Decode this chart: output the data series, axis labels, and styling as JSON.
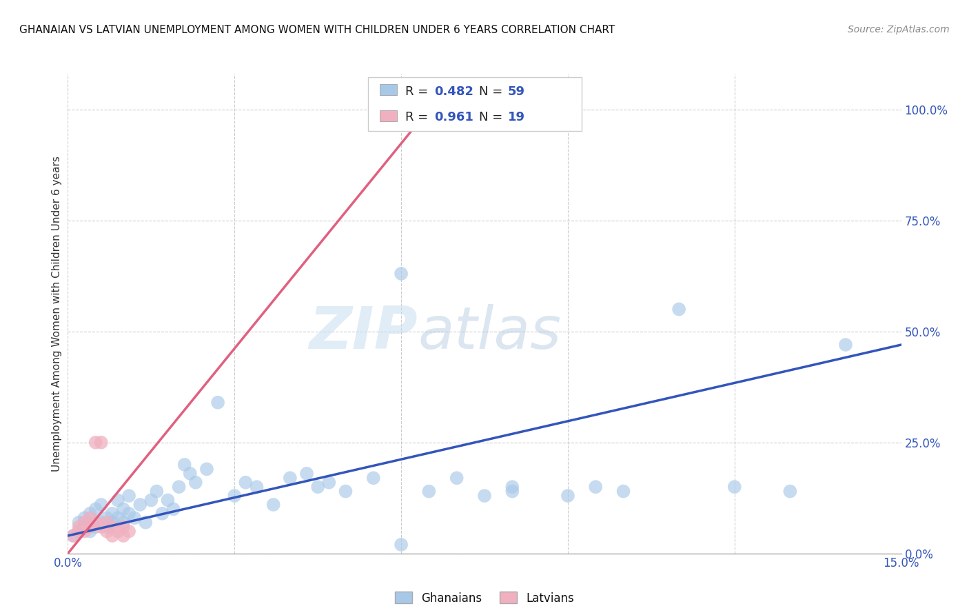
{
  "title": "GHANAIAN VS LATVIAN UNEMPLOYMENT AMONG WOMEN WITH CHILDREN UNDER 6 YEARS CORRELATION CHART",
  "source": "Source: ZipAtlas.com",
  "ylabel": "Unemployment Among Women with Children Under 6 years",
  "xlim": [
    0.0,
    0.15
  ],
  "ylim": [
    0.0,
    1.08
  ],
  "xticks": [
    0.0,
    0.03,
    0.06,
    0.09,
    0.12,
    0.15
  ],
  "xticklabels": [
    "0.0%",
    "",
    "",
    "",
    "",
    "15.0%"
  ],
  "yticks": [
    0.0,
    0.25,
    0.5,
    0.75,
    1.0
  ],
  "yticklabels_right": [
    "0.0%",
    "25.0%",
    "50.0%",
    "75.0%",
    "100.0%"
  ],
  "watermark_zip": "ZIP",
  "watermark_atlas": "atlas",
  "legend_R1": "R = ",
  "legend_V1": "0.482",
  "legend_N1_label": "N = ",
  "legend_N1": "59",
  "legend_R2": "R = ",
  "legend_V2": "0.961",
  "legend_N2_label": "N = ",
  "legend_N2": "19",
  "blue_color": "#a8c8e8",
  "pink_color": "#f0b0c0",
  "blue_line_color": "#3355bb",
  "pink_line_color": "#e06080",
  "text_blue": "#3355bb",
  "ghanaians_label": "Ghanaians",
  "latvians_label": "Latvians",
  "blue_scatter_x": [
    0.001,
    0.002,
    0.002,
    0.003,
    0.003,
    0.004,
    0.004,
    0.005,
    0.005,
    0.006,
    0.006,
    0.007,
    0.007,
    0.008,
    0.008,
    0.009,
    0.009,
    0.01,
    0.01,
    0.011,
    0.011,
    0.012,
    0.013,
    0.014,
    0.015,
    0.016,
    0.017,
    0.018,
    0.019,
    0.02,
    0.021,
    0.022,
    0.023,
    0.025,
    0.027,
    0.03,
    0.032,
    0.034,
    0.037,
    0.04,
    0.043,
    0.047,
    0.05,
    0.055,
    0.06,
    0.065,
    0.07,
    0.075,
    0.08,
    0.09,
    0.095,
    0.1,
    0.11,
    0.12,
    0.13,
    0.14,
    0.045,
    0.06,
    0.08
  ],
  "blue_scatter_y": [
    0.04,
    0.05,
    0.07,
    0.06,
    0.08,
    0.05,
    0.09,
    0.06,
    0.1,
    0.07,
    0.11,
    0.06,
    0.08,
    0.07,
    0.09,
    0.08,
    0.12,
    0.07,
    0.1,
    0.09,
    0.13,
    0.08,
    0.11,
    0.07,
    0.12,
    0.14,
    0.09,
    0.12,
    0.1,
    0.15,
    0.2,
    0.18,
    0.16,
    0.19,
    0.34,
    0.13,
    0.16,
    0.15,
    0.11,
    0.17,
    0.18,
    0.16,
    0.14,
    0.17,
    0.63,
    0.14,
    0.17,
    0.13,
    0.15,
    0.13,
    0.15,
    0.14,
    0.55,
    0.15,
    0.14,
    0.47,
    0.15,
    0.02,
    0.14
  ],
  "pink_scatter_x": [
    0.001,
    0.002,
    0.002,
    0.003,
    0.003,
    0.004,
    0.004,
    0.005,
    0.005,
    0.006,
    0.006,
    0.007,
    0.007,
    0.008,
    0.008,
    0.009,
    0.01,
    0.01,
    0.011
  ],
  "pink_scatter_y": [
    0.04,
    0.05,
    0.06,
    0.05,
    0.07,
    0.06,
    0.08,
    0.25,
    0.07,
    0.25,
    0.06,
    0.05,
    0.07,
    0.04,
    0.06,
    0.05,
    0.06,
    0.04,
    0.05
  ],
  "blue_line_x": [
    0.0,
    0.15
  ],
  "blue_line_y": [
    0.04,
    0.47
  ],
  "pink_line_x": [
    0.0,
    0.065
  ],
  "pink_line_y": [
    0.0,
    1.0
  ]
}
